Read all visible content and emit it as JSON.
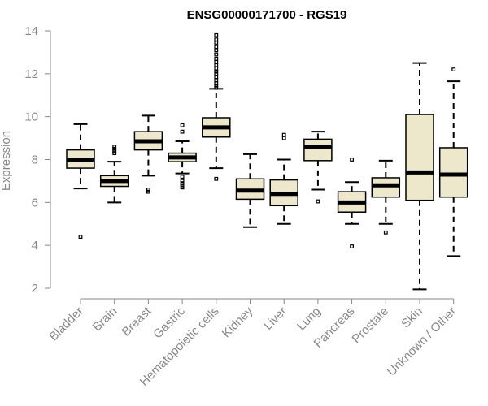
{
  "chart_data": {
    "type": "box",
    "title": "ENSG00000171700 - RGS19",
    "xlabel": "",
    "ylabel": "Expression",
    "ylim": [
      2,
      14
    ],
    "yticks": [
      2,
      4,
      6,
      8,
      10,
      12,
      14
    ],
    "grid": false,
    "box_fill": "#EDE7CC",
    "box_stroke": "#000000",
    "axis_color": "#888888",
    "boxes": [
      {
        "label": "Bladder",
        "whisker_low": 6.65,
        "q1": 7.6,
        "median": 8.0,
        "q3": 8.45,
        "whisker_high": 9.65,
        "outliers": [
          4.4
        ]
      },
      {
        "label": "Brain",
        "whisker_low": 6.0,
        "q1": 6.75,
        "median": 7.0,
        "q3": 7.25,
        "whisker_high": 7.9,
        "outliers": [
          8.3,
          8.4,
          8.5,
          8.6
        ]
      },
      {
        "label": "Breast",
        "whisker_low": 7.25,
        "q1": 8.45,
        "median": 8.85,
        "q3": 9.3,
        "whisker_high": 10.05,
        "outliers": [
          6.5,
          6.6
        ]
      },
      {
        "label": "Gastric",
        "whisker_low": 7.35,
        "q1": 7.9,
        "median": 8.1,
        "q3": 8.3,
        "whisker_high": 8.85,
        "outliers": [
          6.7,
          6.8,
          6.9,
          7.0,
          7.2,
          9.3,
          9.6
        ]
      },
      {
        "label": "Hematopoietic cells",
        "whisker_low": 7.6,
        "q1": 9.05,
        "median": 9.5,
        "q3": 9.95,
        "whisker_high": 11.3,
        "outliers": [
          7.1,
          11.35,
          11.45,
          11.55,
          11.7,
          11.85,
          12.0,
          12.1,
          12.25,
          12.4,
          12.55,
          12.7,
          12.9,
          13.1,
          13.25,
          13.45,
          13.6,
          13.8
        ]
      },
      {
        "label": "Kidney",
        "whisker_low": 4.85,
        "q1": 6.15,
        "median": 6.55,
        "q3": 7.1,
        "whisker_high": 8.25,
        "outliers": []
      },
      {
        "label": "Liver",
        "whisker_low": 5.0,
        "q1": 5.85,
        "median": 6.4,
        "q3": 7.05,
        "whisker_high": 8.0,
        "outliers": [
          9.0,
          9.15
        ]
      },
      {
        "label": "Lung",
        "whisker_low": 6.6,
        "q1": 7.95,
        "median": 8.6,
        "q3": 8.95,
        "whisker_high": 9.3,
        "outliers": [
          6.05
        ]
      },
      {
        "label": "Pancreas",
        "whisker_low": 5.0,
        "q1": 5.55,
        "median": 6.0,
        "q3": 6.5,
        "whisker_high": 6.95,
        "outliers": [
          3.95,
          8.0
        ]
      },
      {
        "label": "Prostate",
        "whisker_low": 5.0,
        "q1": 6.25,
        "median": 6.8,
        "q3": 7.15,
        "whisker_high": 7.95,
        "outliers": [
          4.6
        ]
      },
      {
        "label": "Skin",
        "whisker_low": 1.95,
        "q1": 6.1,
        "median": 7.4,
        "q3": 10.1,
        "whisker_high": 12.5,
        "outliers": []
      },
      {
        "label": "Unknown / Other",
        "whisker_low": 3.5,
        "q1": 6.25,
        "median": 7.3,
        "q3": 8.55,
        "whisker_high": 11.65,
        "outliers": [
          12.2
        ]
      }
    ]
  }
}
